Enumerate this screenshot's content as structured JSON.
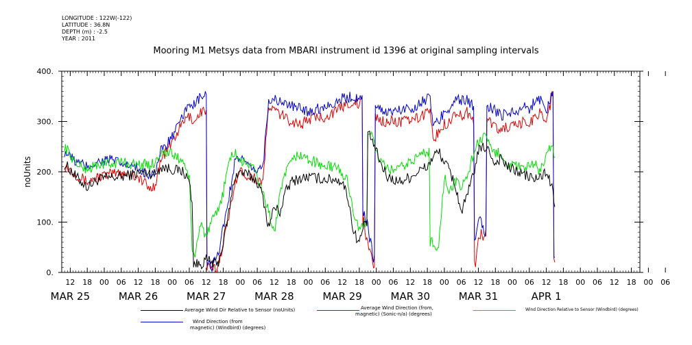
{
  "meta": {
    "longitude": "LONGITUDE : 122W(-122)",
    "latitude": "LATITUDE : 36.8N",
    "depth": "DEPTH (m) : -2.5",
    "year": "YEAR : 2011"
  },
  "chart_data": {
    "type": "line",
    "title": "Mooring M1 Metsys data from MBARI instrument id 1396 at original sampling intervals",
    "ylabel": "noUnits",
    "xlabel": "",
    "ylim": [
      0,
      400
    ],
    "yticks": [
      0,
      100,
      200,
      300,
      400
    ],
    "ytick_labels": [
      "0.",
      "100.",
      "200.",
      "300.",
      "400."
    ],
    "xlim_hours": [
      -15,
      189
    ],
    "hour_ticks": [
      "12",
      "18",
      "00",
      "06",
      "12",
      "18",
      "00",
      "06",
      "12",
      "18",
      "00",
      "06",
      "12",
      "18",
      "00",
      "06",
      "12",
      "18",
      "00",
      "06",
      "12",
      "18",
      "00",
      "06",
      "12",
      "18",
      "00",
      "06",
      "12",
      "18",
      "00",
      "06",
      "12",
      "18",
      "00",
      "06"
    ],
    "day_labels": [
      {
        "label": "MAR 25",
        "hour": -12
      },
      {
        "label": "MAR 26",
        "hour": 12
      },
      {
        "label": "MAR 27",
        "hour": 36
      },
      {
        "label": "MAR 28",
        "hour": 60
      },
      {
        "label": "MAR 29",
        "hour": 84
      },
      {
        "label": "MAR 30",
        "hour": 108
      },
      {
        "label": "MAR 31",
        "hour": 132
      },
      {
        "label": "APR 1",
        "hour": 156
      }
    ],
    "grid": false,
    "series": [
      {
        "name": "Average Wind Dir Relative to Sensor (noUnits)",
        "color": "#000000",
        "keypoints": [
          [
            -14,
            215
          ],
          [
            -12,
            205
          ],
          [
            -10,
            190
          ],
          [
            -6,
            170
          ],
          [
            -2,
            185
          ],
          [
            2,
            188
          ],
          [
            6,
            190
          ],
          [
            10,
            195
          ],
          [
            14,
            200
          ],
          [
            16,
            198
          ],
          [
            18,
            195
          ],
          [
            20,
            210
          ],
          [
            24,
            205
          ],
          [
            28,
            200
          ],
          [
            30,
            180
          ],
          [
            31,
            140
          ],
          [
            31.5,
            20
          ],
          [
            33,
            15
          ],
          [
            35,
            20
          ],
          [
            36,
            25
          ],
          [
            38,
            20
          ],
          [
            40,
            15
          ],
          [
            42,
            60
          ],
          [
            44,
            120
          ],
          [
            46,
            190
          ],
          [
            48,
            200
          ],
          [
            50,
            195
          ],
          [
            52,
            190
          ],
          [
            54,
            180
          ],
          [
            56,
            150
          ],
          [
            58,
            90
          ],
          [
            60,
            130
          ],
          [
            62,
            120
          ],
          [
            64,
            160
          ],
          [
            66,
            180
          ],
          [
            68,
            185
          ],
          [
            72,
            190
          ],
          [
            78,
            185
          ],
          [
            82,
            185
          ],
          [
            84,
            180
          ],
          [
            86,
            150
          ],
          [
            88,
            80
          ],
          [
            90,
            60
          ],
          [
            92,
            100
          ],
          [
            94,
            270
          ],
          [
            96,
            240
          ],
          [
            98,
            210
          ],
          [
            100,
            190
          ],
          [
            104,
            180
          ],
          [
            108,
            190
          ],
          [
            112,
            205
          ],
          [
            114,
            210
          ],
          [
            116,
            230
          ],
          [
            118,
            240
          ],
          [
            120,
            220
          ],
          [
            122,
            200
          ],
          [
            124,
            170
          ],
          [
            126,
            120
          ],
          [
            128,
            150
          ],
          [
            130,
            190
          ],
          [
            132,
            240
          ],
          [
            134,
            250
          ],
          [
            136,
            240
          ],
          [
            138,
            215
          ],
          [
            140,
            230
          ],
          [
            142,
            210
          ],
          [
            146,
            200
          ],
          [
            148,
            195
          ],
          [
            150,
            190
          ],
          [
            152,
            185
          ],
          [
            154,
            190
          ],
          [
            156,
            200
          ],
          [
            158,
            170
          ],
          [
            159,
            130
          ]
        ]
      },
      {
        "name": "Average Wind Direction (from, magnetic) (Sonic-n/a) (degrees)",
        "color": "#dd0000",
        "keypoints": [
          [
            -14,
            212
          ],
          [
            -12,
            205
          ],
          [
            -10,
            195
          ],
          [
            -6,
            180
          ],
          [
            -2,
            190
          ],
          [
            2,
            195
          ],
          [
            6,
            200
          ],
          [
            10,
            195
          ],
          [
            14,
            180
          ],
          [
            16,
            165
          ],
          [
            18,
            175
          ],
          [
            20,
            225
          ],
          [
            24,
            260
          ],
          [
            28,
            300
          ],
          [
            30,
            310
          ],
          [
            32,
            300
          ],
          [
            34,
            320
          ],
          [
            36,
            320
          ],
          [
            36.5,
            10
          ],
          [
            38,
            5
          ],
          [
            40,
            10
          ],
          [
            42,
            60
          ],
          [
            44,
            110
          ],
          [
            46,
            180
          ],
          [
            48,
            200
          ],
          [
            52,
            190
          ],
          [
            56,
            180
          ],
          [
            58,
            330
          ],
          [
            62,
            315
          ],
          [
            66,
            300
          ],
          [
            70,
            295
          ],
          [
            72,
            305
          ],
          [
            78,
            310
          ],
          [
            82,
            320
          ],
          [
            84,
            330
          ],
          [
            88,
            340
          ],
          [
            90,
            330
          ],
          [
            91,
            350
          ],
          [
            91.5,
            100
          ],
          [
            92,
            80
          ],
          [
            93,
            60
          ],
          [
            94,
            40
          ],
          [
            95,
            10
          ],
          [
            96,
            310
          ],
          [
            98,
            300
          ],
          [
            102,
            300
          ],
          [
            106,
            300
          ],
          [
            110,
            305
          ],
          [
            112,
            310
          ],
          [
            114,
            320
          ],
          [
            115,
            330
          ],
          [
            116,
            260
          ],
          [
            118,
            280
          ],
          [
            120,
            295
          ],
          [
            122,
            300
          ],
          [
            124,
            320
          ],
          [
            126,
            310
          ],
          [
            128,
            320
          ],
          [
            130,
            300
          ],
          [
            131,
            20
          ],
          [
            132,
            60
          ],
          [
            133,
            80
          ],
          [
            134,
            70
          ],
          [
            136,
            300
          ],
          [
            138,
            290
          ],
          [
            140,
            280
          ],
          [
            142,
            290
          ],
          [
            146,
            290
          ],
          [
            148,
            300
          ],
          [
            150,
            295
          ],
          [
            152,
            310
          ],
          [
            154,
            320
          ],
          [
            156,
            300
          ],
          [
            158,
            350
          ],
          [
            159,
            20
          ]
        ]
      },
      {
        "name": "Wind Direction Relative to Sensor (Windbird) (degrees)",
        "color": "#00dd00",
        "keypoints": [
          [
            -14,
            250
          ],
          [
            -12,
            235
          ],
          [
            -10,
            215
          ],
          [
            -6,
            205
          ],
          [
            -2,
            215
          ],
          [
            2,
            215
          ],
          [
            6,
            220
          ],
          [
            10,
            215
          ],
          [
            14,
            215
          ],
          [
            16,
            212
          ],
          [
            18,
            220
          ],
          [
            20,
            240
          ],
          [
            24,
            235
          ],
          [
            28,
            220
          ],
          [
            30,
            190
          ],
          [
            31,
            40
          ],
          [
            32,
            30
          ],
          [
            33,
            70
          ],
          [
            34,
            100
          ],
          [
            36,
            70
          ],
          [
            38,
            100
          ],
          [
            40,
            120
          ],
          [
            42,
            160
          ],
          [
            44,
            220
          ],
          [
            46,
            240
          ],
          [
            48,
            220
          ],
          [
            52,
            215
          ],
          [
            56,
            160
          ],
          [
            58,
            120
          ],
          [
            60,
            80
          ],
          [
            62,
            150
          ],
          [
            64,
            200
          ],
          [
            66,
            215
          ],
          [
            68,
            235
          ],
          [
            72,
            225
          ],
          [
            78,
            210
          ],
          [
            82,
            210
          ],
          [
            84,
            195
          ],
          [
            86,
            180
          ],
          [
            88,
            120
          ],
          [
            90,
            80
          ],
          [
            92,
            100
          ],
          [
            94,
            280
          ],
          [
            96,
            240
          ],
          [
            98,
            215
          ],
          [
            100,
            205
          ],
          [
            104,
            205
          ],
          [
            108,
            220
          ],
          [
            112,
            235
          ],
          [
            114,
            240
          ],
          [
            116,
            60
          ],
          [
            118,
            50
          ],
          [
            120,
            190
          ],
          [
            122,
            160
          ],
          [
            124,
            180
          ],
          [
            126,
            170
          ],
          [
            128,
            190
          ],
          [
            130,
            230
          ],
          [
            132,
            260
          ],
          [
            134,
            270
          ],
          [
            136,
            250
          ],
          [
            138,
            235
          ],
          [
            140,
            240
          ],
          [
            142,
            215
          ],
          [
            146,
            210
          ],
          [
            148,
            205
          ],
          [
            150,
            210
          ],
          [
            152,
            215
          ],
          [
            154,
            200
          ],
          [
            156,
            240
          ],
          [
            158,
            250
          ],
          [
            159,
            230
          ]
        ]
      },
      {
        "name": "Wind Direction (from, magnetic) (Windbird) (degrees)",
        "color": "#0000cc",
        "keypoints": [
          [
            -14,
            240
          ],
          [
            -12,
            230
          ],
          [
            -10,
            220
          ],
          [
            -6,
            210
          ],
          [
            -2,
            220
          ],
          [
            2,
            225
          ],
          [
            6,
            215
          ],
          [
            10,
            210
          ],
          [
            14,
            200
          ],
          [
            16,
            195
          ],
          [
            18,
            200
          ],
          [
            20,
            240
          ],
          [
            24,
            270
          ],
          [
            28,
            310
          ],
          [
            30,
            340
          ],
          [
            32,
            330
          ],
          [
            34,
            350
          ],
          [
            36,
            350
          ],
          [
            36.5,
            20
          ],
          [
            38,
            10
          ],
          [
            40,
            30
          ],
          [
            42,
            90
          ],
          [
            44,
            150
          ],
          [
            46,
            220
          ],
          [
            48,
            230
          ],
          [
            52,
            200
          ],
          [
            56,
            210
          ],
          [
            58,
            345
          ],
          [
            62,
            340
          ],
          [
            66,
            330
          ],
          [
            70,
            325
          ],
          [
            72,
            320
          ],
          [
            78,
            330
          ],
          [
            82,
            340
          ],
          [
            84,
            345
          ],
          [
            88,
            350
          ],
          [
            90,
            340
          ],
          [
            91,
            360
          ],
          [
            91.5,
            120
          ],
          [
            93,
            90
          ],
          [
            95,
            30
          ],
          [
            96,
            330
          ],
          [
            98,
            320
          ],
          [
            102,
            320
          ],
          [
            106,
            325
          ],
          [
            110,
            330
          ],
          [
            112,
            340
          ],
          [
            114,
            345
          ],
          [
            115,
            350
          ],
          [
            116,
            290
          ],
          [
            118,
            300
          ],
          [
            120,
            320
          ],
          [
            122,
            330
          ],
          [
            124,
            345
          ],
          [
            126,
            340
          ],
          [
            128,
            345
          ],
          [
            130,
            330
          ],
          [
            131,
            60
          ],
          [
            132,
            100
          ],
          [
            133,
            100
          ],
          [
            134,
            80
          ],
          [
            136,
            330
          ],
          [
            138,
            320
          ],
          [
            140,
            310
          ],
          [
            142,
            320
          ],
          [
            146,
            320
          ],
          [
            148,
            330
          ],
          [
            150,
            325
          ],
          [
            152,
            340
          ],
          [
            154,
            345
          ],
          [
            156,
            320
          ],
          [
            158,
            355
          ],
          [
            159,
            30
          ]
        ]
      }
    ]
  },
  "legend": [
    {
      "lines": [
        "Average Wind Dir Relative to Sensor (noUnits)"
      ]
    },
    {
      "lines": [
        "Average Wind Direction (from,",
        "magnetic) (Sonic-n/a) (degrees)"
      ]
    },
    {
      "lines": [
        "Wind Direction Relative to Sensor (Windbird) (degrees)"
      ]
    },
    {
      "lines": [
        "Wind Direction (from",
        "magnetic) (Windbird) (degrees)"
      ]
    }
  ]
}
